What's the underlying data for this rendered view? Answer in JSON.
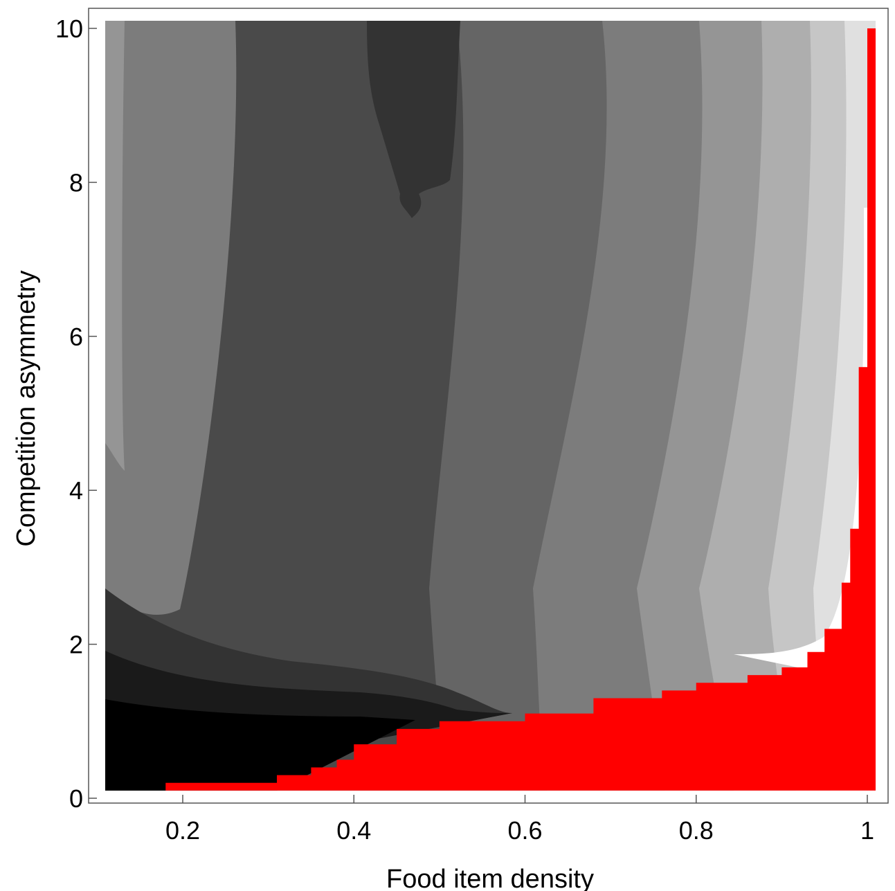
{
  "chart_data": {
    "type": "contour",
    "xlabel": "Food item density",
    "ylabel": "Competition asymmetry",
    "xlim": [
      0.1,
      1.0
    ],
    "ylim": [
      0,
      10
    ],
    "x_ticks": [
      "0.2",
      "0.4",
      "0.6",
      "0.8",
      "1"
    ],
    "x_tick_values": [
      0.2,
      0.4,
      0.6,
      0.8,
      1.0
    ],
    "y_ticks": [
      "0",
      "2",
      "4",
      "6",
      "8",
      "10"
    ],
    "y_tick_values": [
      0,
      2,
      4,
      6,
      8,
      10
    ],
    "grid": false,
    "legend": "none",
    "colors": {
      "excluded_region": "#ff0000",
      "contour_scale": [
        "#000000",
        "#1a1a1a",
        "#333333",
        "#4a4a4a",
        "#656565",
        "#7c7c7c",
        "#959595",
        "#aeaeae",
        "#c6c6c6",
        "#e0e0e0",
        "#ffffff"
      ]
    },
    "red_boundary": {
      "x": [
        0.1,
        0.16,
        0.18,
        0.27,
        0.31,
        0.35,
        0.38,
        0.4,
        0.45,
        0.5,
        0.6,
        0.68,
        0.76,
        0.8,
        0.86,
        0.9,
        0.93,
        0.95,
        0.97,
        0.98,
        0.99,
        1.0
      ],
      "y": [
        0.1,
        0.1,
        0.2,
        0.2,
        0.3,
        0.4,
        0.5,
        0.7,
        0.9,
        1.0,
        1.1,
        1.3,
        1.4,
        1.5,
        1.6,
        1.7,
        1.9,
        2.2,
        2.8,
        3.5,
        5.6,
        10.0
      ]
    }
  }
}
